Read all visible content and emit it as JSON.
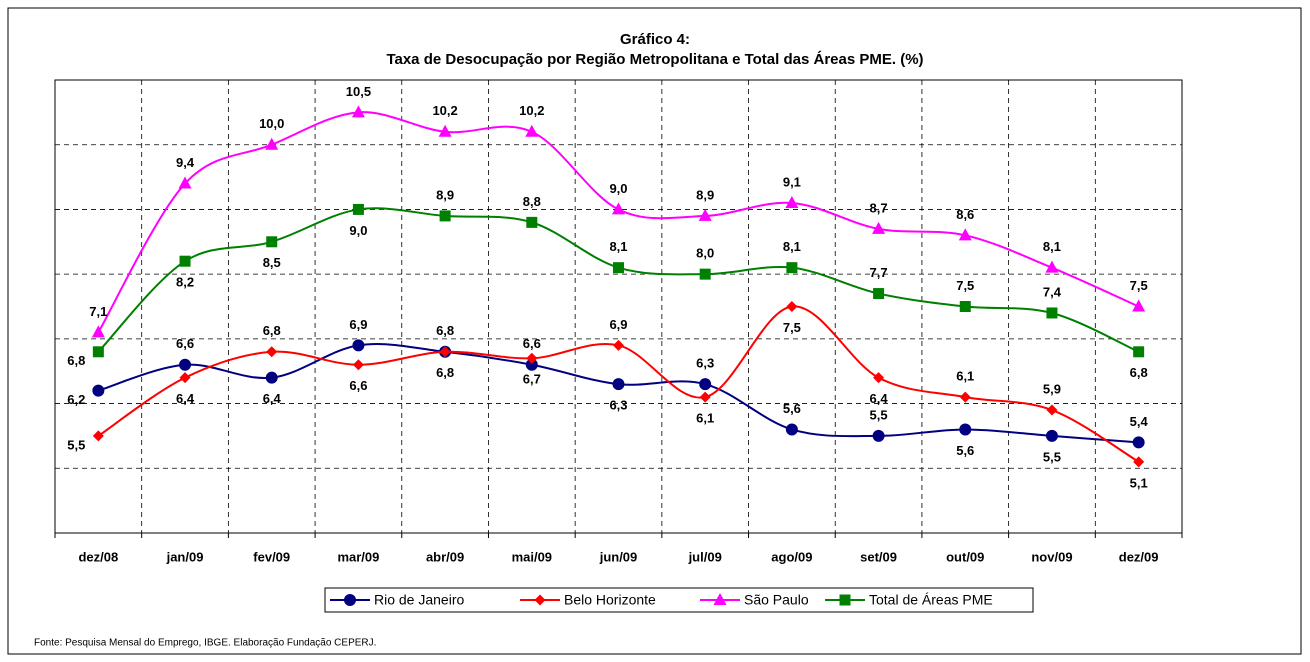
{
  "chart_data": {
    "type": "line",
    "title": "Gráfico 4:",
    "subtitle": "Taxa de Desocupação por Região Metropolitana e Total das Áreas PME. (%)",
    "source": "Fonte: Pesquisa Mensal do Emprego, IBGE. Elaboração Fundação CEPERJ.",
    "categories": [
      "dez/08",
      "jan/09",
      "fev/09",
      "mar/09",
      "abr/09",
      "mai/09",
      "jun/09",
      "jul/09",
      "ago/09",
      "set/09",
      "out/09",
      "nov/09",
      "dez/09"
    ],
    "ylim": [
      4,
      11
    ],
    "yticks": [
      5,
      6,
      7,
      8,
      9,
      10
    ],
    "grid": true,
    "series": [
      {
        "name": "Rio de Janeiro",
        "color": "#000080",
        "marker": "circle",
        "values": [
          6.2,
          6.6,
          6.4,
          6.9,
          6.8,
          6.6,
          6.3,
          6.3,
          5.6,
          5.5,
          5.6,
          5.5,
          5.4
        ],
        "value_labels": [
          "6,2",
          "6,6",
          "6,4",
          "6,9",
          "6,8",
          "6,6",
          "6,3",
          "6,3",
          "5,6",
          "5,5",
          "5,6",
          "5,5",
          "5,4"
        ]
      },
      {
        "name": "Belo Horizonte",
        "color": "#ff0000",
        "marker": "diamond",
        "values": [
          5.5,
          6.4,
          6.8,
          6.6,
          6.8,
          6.7,
          6.9,
          6.1,
          7.5,
          6.4,
          6.1,
          5.9,
          5.1
        ],
        "value_labels": [
          "5,5",
          "6,4",
          "6,8",
          "6,6",
          "6,8",
          "6,7",
          "6,9",
          "6,1",
          "7,5",
          "6,4",
          "6,1",
          "5,9",
          "5,1"
        ]
      },
      {
        "name": "São Paulo",
        "color": "#ff00ff",
        "marker": "triangle",
        "values": [
          7.1,
          9.4,
          10.0,
          10.5,
          10.2,
          10.2,
          9.0,
          8.9,
          9.1,
          8.7,
          8.6,
          8.1,
          7.5
        ],
        "value_labels": [
          "7,1",
          "9,4",
          "10,0",
          "10,5",
          "10,2",
          "10,2",
          "9,0",
          "8,9",
          "9,1",
          "8,7",
          "8,6",
          "8,1",
          "7,5"
        ]
      },
      {
        "name": "Total de Áreas PME",
        "color": "#008000",
        "marker": "square",
        "values": [
          6.8,
          8.2,
          8.5,
          9.0,
          8.9,
          8.8,
          8.1,
          8.0,
          8.1,
          7.7,
          7.5,
          7.4,
          6.8
        ],
        "value_labels": [
          "6,8",
          "8,2",
          "8,5",
          "9,0",
          "8,9",
          "8,8",
          "8,1",
          "8,0",
          "8,1",
          "7,7",
          "7,5",
          "7,4",
          "6,8"
        ]
      }
    ]
  }
}
